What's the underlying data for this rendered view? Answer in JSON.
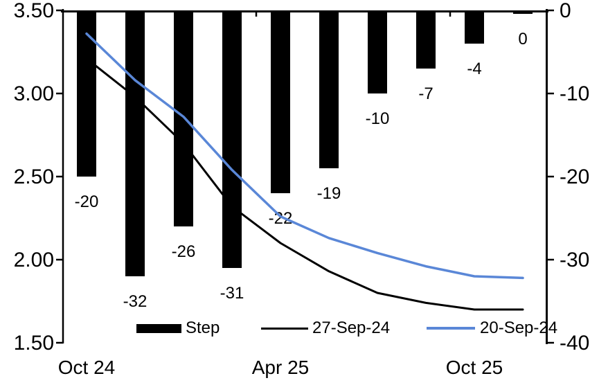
{
  "chart_data": {
    "type": "combo",
    "n_categories": 10,
    "series": [
      {
        "name": "Step",
        "type": "bar",
        "axis": "right",
        "color": "#000000",
        "values": [
          -20,
          -32,
          -26,
          -31,
          -22,
          -19,
          -10,
          -7,
          -4,
          0
        ],
        "data_labels": [
          "-20",
          "-32",
          "-26",
          "-31",
          "-22",
          "-19",
          "-10",
          "-7",
          "-4",
          "0"
        ]
      },
      {
        "name": "27-Sep-24",
        "type": "line",
        "axis": "left",
        "color": "#000000",
        "stroke_width": 3,
        "values": [
          3.21,
          2.98,
          2.7,
          2.32,
          2.1,
          1.93,
          1.8,
          1.74,
          1.7,
          1.7
        ]
      },
      {
        "name": "20-Sep-24",
        "type": "line",
        "axis": "left",
        "color": "#5a87d7",
        "stroke_width": 3.5,
        "values": [
          3.36,
          3.08,
          2.86,
          2.54,
          2.26,
          2.13,
          2.04,
          1.96,
          1.9,
          1.89
        ]
      }
    ],
    "left_axis": {
      "min": 1.5,
      "max": 3.5,
      "step": 0.5,
      "tick_labels": [
        "3.50",
        "3.00",
        "2.50",
        "2.00",
        "1.50"
      ]
    },
    "right_axis": {
      "min": -40,
      "max": 0,
      "step": 10,
      "tick_labels": [
        "0",
        "-10",
        "-20",
        "-30",
        "-40"
      ]
    },
    "x_axis": {
      "tick_labels": [
        "Oct 24",
        "Apr 25",
        "Oct 25"
      ],
      "label_category_indices": [
        0,
        4,
        8
      ],
      "top_tick_boundary_indices": [
        4,
        8
      ]
    },
    "legend": {
      "position": "bottom",
      "items": [
        {
          "label": "Step",
          "swatch": "bar",
          "color": "#000000"
        },
        {
          "label": "27-Sep-24",
          "swatch": "line",
          "color": "#000000"
        },
        {
          "label": "20-Sep-24",
          "swatch": "line",
          "color": "#5a87d7"
        }
      ]
    },
    "grid": false,
    "background": "#ffffff"
  }
}
